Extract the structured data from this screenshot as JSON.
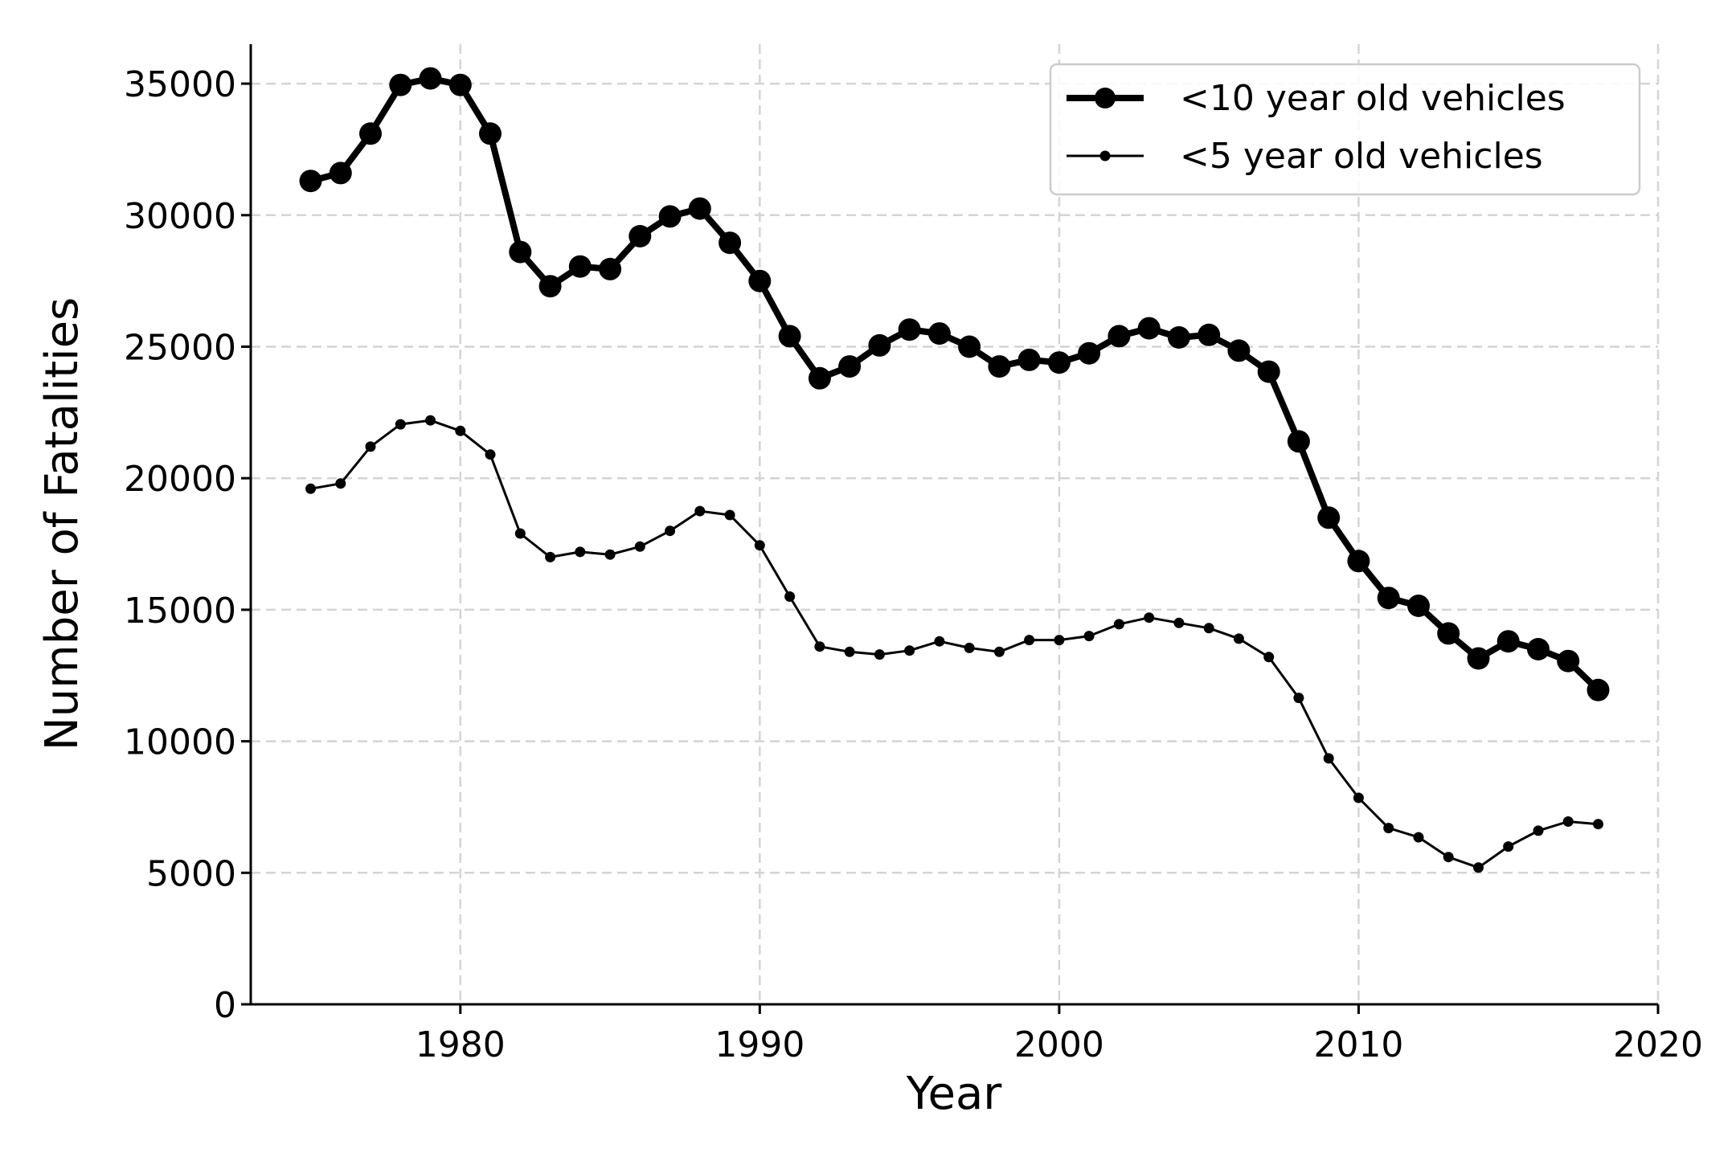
{
  "chart_data": {
    "type": "line",
    "title": "",
    "xlabel": "Year",
    "ylabel": "Number of Fatalities",
    "xlim": [
      1973,
      2020
    ],
    "ylim": [
      0,
      36500
    ],
    "xticks": [
      1980,
      1990,
      2000,
      2010,
      2020
    ],
    "yticks": [
      0,
      5000,
      10000,
      15000,
      20000,
      25000,
      30000,
      35000
    ],
    "grid": true,
    "legend_position": "top-right",
    "x": [
      1975,
      1976,
      1977,
      1978,
      1979,
      1980,
      1981,
      1982,
      1983,
      1984,
      1985,
      1986,
      1987,
      1988,
      1989,
      1990,
      1991,
      1992,
      1993,
      1994,
      1995,
      1996,
      1997,
      1998,
      1999,
      2000,
      2001,
      2002,
      2003,
      2004,
      2005,
      2006,
      2007,
      2008,
      2009,
      2010,
      2011,
      2012,
      2013,
      2014,
      2015,
      2016,
      2017,
      2018
    ],
    "series": [
      {
        "name": "<10 year old vehicles",
        "color": "#000000",
        "style": "thick",
        "values": [
          31300,
          31600,
          33100,
          34950,
          35200,
          34950,
          33100,
          28600,
          27300,
          28050,
          27950,
          29200,
          29950,
          30250,
          28950,
          27500,
          25400,
          23800,
          24250,
          25050,
          25650,
          25500,
          25000,
          24250,
          24500,
          24400,
          24750,
          25400,
          25700,
          25350,
          25450,
          24850,
          24050,
          21400,
          18500,
          16850,
          15450,
          15150,
          14100,
          13150,
          13800,
          13500,
          13050,
          11950
        ]
      },
      {
        "name": "<5 year old vehicles",
        "color": "#000000",
        "style": "thin",
        "values": [
          19600,
          19800,
          21200,
          22050,
          22200,
          21800,
          20900,
          17900,
          17000,
          17200,
          17100,
          17400,
          18000,
          18750,
          18600,
          17450,
          15500,
          13600,
          13400,
          13300,
          13450,
          13800,
          13550,
          13400,
          13850,
          13850,
          14000,
          14450,
          14700,
          14500,
          14300,
          13900,
          13200,
          11650,
          9350,
          7850,
          6700,
          6350,
          5600,
          5200,
          6000,
          6600,
          6950,
          6850
        ]
      }
    ]
  }
}
